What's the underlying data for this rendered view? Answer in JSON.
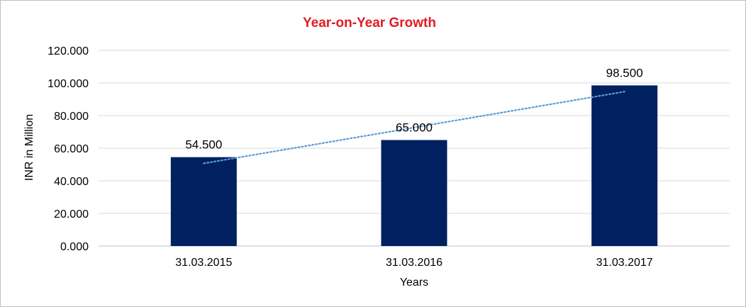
{
  "chart_data": {
    "type": "bar",
    "title": "Year-on-Year Growth",
    "xlabel": "Years",
    "ylabel": "INR in Million",
    "categories": [
      "31.03.2015",
      "31.03.2016",
      "31.03.2017"
    ],
    "values": [
      54.5,
      65.0,
      98.5
    ],
    "data_labels": [
      "54.500",
      "65.000",
      "98.500"
    ],
    "y_ticks": [
      0,
      20,
      40,
      60,
      80,
      100,
      120
    ],
    "y_tick_labels": [
      "0.000",
      "20.000",
      "40.000",
      "60.000",
      "80.000",
      "100.000",
      "120.000"
    ],
    "ylim": [
      0,
      120
    ],
    "grid": true,
    "trendline": "linear",
    "colors": {
      "bar": "#002060",
      "title": "#e31b23",
      "trendline": "#5b9bd5",
      "grid": "#d9d9d9"
    }
  }
}
